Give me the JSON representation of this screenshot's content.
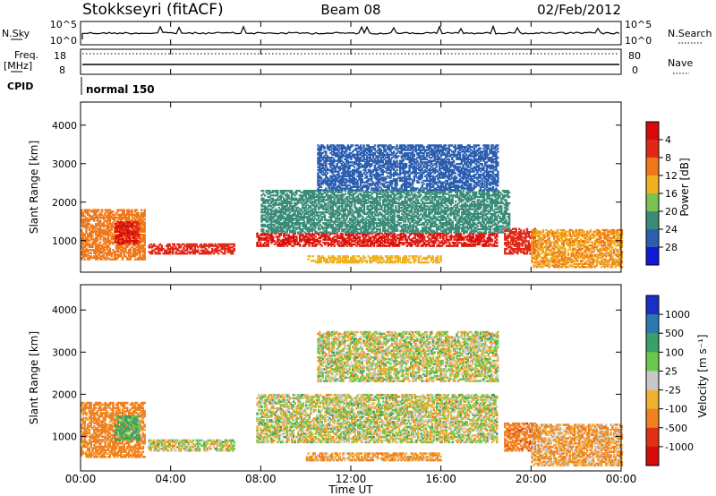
{
  "header": {
    "station": "Stokkseyri (fitACF)",
    "beam": "Beam 08",
    "date": "02/Feb/2012"
  },
  "top_panels": {
    "nsky_label": "N.Sky",
    "nsky_ticks": [
      "10^5",
      "10^0"
    ],
    "nsearch_label": "N.Search",
    "nsearch_ticks": [
      "10^5",
      "10^0"
    ],
    "freq_label": "Freq.",
    "freq_unit": "[MHz]",
    "freq_ticks": [
      "18",
      "8"
    ],
    "nave_label": "Nave",
    "nave_ticks": [
      "80",
      "0"
    ],
    "cpid_label": "CPID",
    "cpid_value": "normal 150"
  },
  "x_axis": {
    "label": "Time UT",
    "ticks": [
      "00:00",
      "04:00",
      "08:00",
      "12:00",
      "16:00",
      "20:00",
      "00:00"
    ]
  },
  "power_panel": {
    "ylabel": "Slant Range [km]",
    "yticks": [
      "1000",
      "2000",
      "3000",
      "4000"
    ],
    "colorbar_label": "Power [dB]",
    "colorbar_ticks": [
      "4",
      "8",
      "12",
      "16",
      "20",
      "24",
      "28"
    ],
    "colorbar_colors": [
      "#1018d8",
      "#2c5fb0",
      "#3a8c78",
      "#7cc250",
      "#f0b020",
      "#f07818",
      "#e02818",
      "#d80a0a"
    ]
  },
  "velocity_panel": {
    "ylabel": "Slant Range [km]",
    "yticks": [
      "1000",
      "2000",
      "3000",
      "4000"
    ],
    "colorbar_label": "Velocity [m s⁻¹]",
    "colorbar_ticks": [
      "1000",
      "500",
      "100",
      "25",
      "-25",
      "-100",
      "-500",
      "-1000"
    ],
    "colorbar_colors": [
      "#1a2fc8",
      "#2a7ab0",
      "#3aa06a",
      "#6cc84a",
      "#c8c8c8",
      "#f0b030",
      "#f08020",
      "#e03018",
      "#d80a0a"
    ]
  },
  "chart_data": [
    {
      "type": "heatmap",
      "title": "Stokkseyri (fitACF) Beam 08 02/Feb/2012",
      "xlabel": "Time UT",
      "ylabel": "Slant Range [km]",
      "colorbar": "Power [dB]",
      "x_unit": "hours UT",
      "xlim": [
        0,
        24
      ],
      "ylim": [
        180,
        4600
      ],
      "clim": [
        0,
        32
      ],
      "regions": [
        {
          "t0": 0.0,
          "t1": 2.8,
          "r0": 500,
          "r1": 1800,
          "value": 22
        },
        {
          "t0": 1.5,
          "t1": 2.6,
          "r0": 900,
          "r1": 1500,
          "value": 28
        },
        {
          "t0": 3.0,
          "t1": 6.8,
          "r0": 650,
          "r1": 900,
          "value": 26
        },
        {
          "t0": 7.8,
          "t1": 18.5,
          "r0": 850,
          "r1": 1200,
          "value": 28
        },
        {
          "t0": 10.0,
          "t1": 16.0,
          "r0": 420,
          "r1": 620,
          "value": 18
        },
        {
          "t0": 8.0,
          "t1": 19.0,
          "r0": 1200,
          "r1": 2300,
          "value": 10
        },
        {
          "t0": 10.5,
          "t1": 18.5,
          "r0": 2300,
          "r1": 3500,
          "value": 6
        },
        {
          "t0": 18.8,
          "t1": 20.2,
          "r0": 650,
          "r1": 1300,
          "value": 26
        },
        {
          "t0": 20.0,
          "t1": 24.0,
          "r0": 300,
          "r1": 1300,
          "value": 20
        }
      ]
    },
    {
      "type": "heatmap",
      "title": "Stokkseyri (fitACF) Beam 08 02/Feb/2012",
      "xlabel": "Time UT",
      "ylabel": "Slant Range [km]",
      "colorbar": "Velocity [m s-1]",
      "x_unit": "hours UT",
      "xlim": [
        0,
        24
      ],
      "ylim": [
        180,
        4600
      ],
      "clim": [
        -1000,
        1000
      ],
      "regions": [
        {
          "t0": 0.0,
          "t1": 2.8,
          "r0": 500,
          "r1": 1800,
          "value": -200
        },
        {
          "t0": 1.5,
          "t1": 2.6,
          "r0": 900,
          "r1": 1500,
          "value": 150
        },
        {
          "t0": 3.0,
          "t1": 6.8,
          "r0": 650,
          "r1": 900,
          "value": 0
        },
        {
          "t0": 7.8,
          "t1": 18.5,
          "r0": 850,
          "r1": 2000,
          "value": 0
        },
        {
          "t0": 10.0,
          "t1": 16.0,
          "r0": 420,
          "r1": 620,
          "value": -120
        },
        {
          "t0": 10.5,
          "t1": 18.5,
          "r0": 2300,
          "r1": 3500,
          "value": 0
        },
        {
          "t0": 18.8,
          "t1": 20.2,
          "r0": 650,
          "r1": 1300,
          "value": -400
        },
        {
          "t0": 20.0,
          "t1": 24.0,
          "r0": 300,
          "r1": 1300,
          "value": -100
        }
      ]
    }
  ]
}
